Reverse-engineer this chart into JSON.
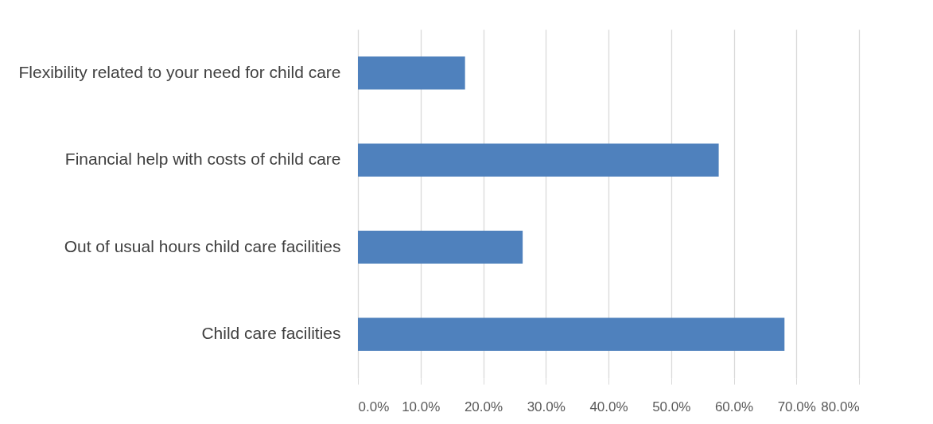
{
  "chart_data": {
    "type": "bar",
    "orientation": "horizontal",
    "categories": [
      "Flexibility related to your need for child care",
      "Financial help with costs of child care",
      "Out of usual hours child care facilities",
      "Child care facilities"
    ],
    "values": [
      17.1,
      57.6,
      26.3,
      68.1
    ],
    "color": "#4f81bd",
    "xlim": [
      0,
      80
    ],
    "xticks": [
      {
        "value": 0,
        "label": "0.0%"
      },
      {
        "value": 10,
        "label": "10.0%"
      },
      {
        "value": 20,
        "label": "20.0%"
      },
      {
        "value": 30,
        "label": "30.0%"
      },
      {
        "value": 40,
        "label": "40.0%"
      },
      {
        "value": 50,
        "label": "50.0%"
      },
      {
        "value": 60,
        "label": "60.0%"
      },
      {
        "value": 70,
        "label": "70.0%"
      },
      {
        "value": 80,
        "label": "80.0%"
      }
    ],
    "grid": "x"
  }
}
